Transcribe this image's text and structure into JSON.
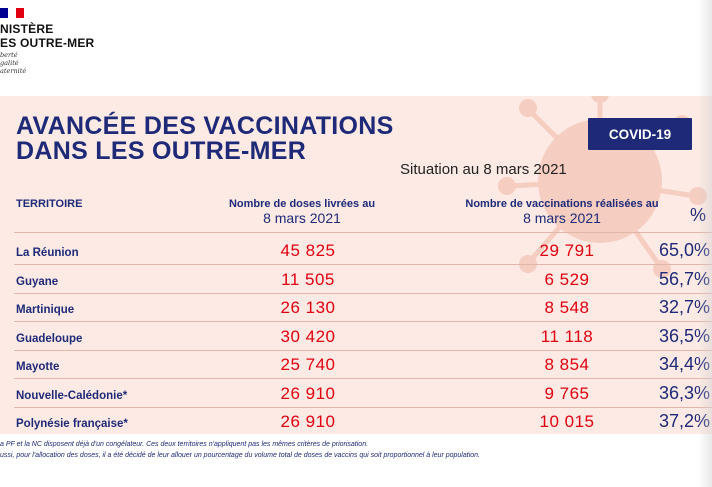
{
  "header": {
    "ministry_line1": "NISTÈRE",
    "ministry_line2": "ES OUTRE-MER",
    "motto": [
      "berté",
      "galité",
      "aternité"
    ],
    "flag_colors": [
      "#000091",
      "#ffffff",
      "#e1000f"
    ]
  },
  "title_line1": "AVANCÉE DES VACCINATIONS",
  "title_line2": "DANS LES OUTRE-MER",
  "badge": "COVID-19",
  "situation": "Situation au 8 mars 2021",
  "columns": {
    "territory": "TERRITOIRE",
    "doses_line1": "Nombre de doses livrées au",
    "doses_line2": "8 mars 2021",
    "vax_line1": "Nombre de vaccinations réalisées au",
    "vax_line2": "8 mars 2021",
    "pct": "%"
  },
  "rows": [
    {
      "territory": "La Réunion",
      "doses": "45 825",
      "vaccinations": "29 791",
      "pct": "65,0%"
    },
    {
      "territory": "Guyane",
      "doses": "11 505",
      "vaccinations": "6 529",
      "pct": "56,7%"
    },
    {
      "territory": "Martinique",
      "doses": "26 130",
      "vaccinations": "8 548",
      "pct": "32,7%"
    },
    {
      "territory": "Guadeloupe",
      "doses": "30 420",
      "vaccinations": "11 118",
      "pct": "36,5%"
    },
    {
      "territory": "Mayotte",
      "doses": "25 740",
      "vaccinations": "8 854",
      "pct": "34,4%"
    },
    {
      "territory": "Nouvelle-Calédonie*",
      "doses": "26 910",
      "vaccinations": "9 765",
      "pct": "36,3%"
    },
    {
      "territory": "Polynésie française*",
      "doses": "26 910",
      "vaccinations": "10 015",
      "pct": "37,2%"
    }
  ],
  "footnotes": [
    "a PF et la NC disposent déjà d'un congélateur. Ces deux territoires n'appliquent pas les mêmes critères de priorisation.",
    "ussi, pour l'allocation des doses, il a été décidé de leur allouer un pourcentage du volume total de doses de vaccins qui soit proportionnel à leur population."
  ],
  "colors": {
    "navy": "#1e2a78",
    "red": "#e1000f",
    "panel": "#fdeae4",
    "virus": "#f3c4b6"
  }
}
